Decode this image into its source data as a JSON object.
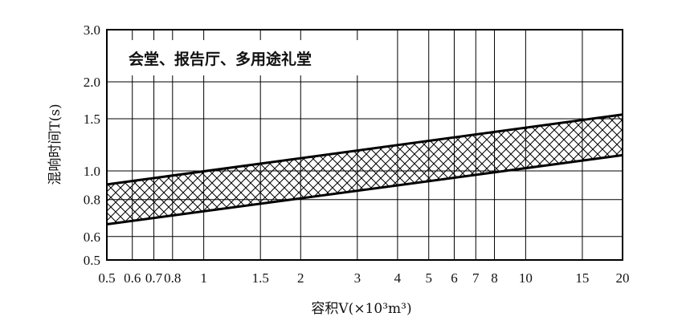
{
  "chart_data": {
    "type": "area",
    "title": "会堂、报告厅、多用途礼堂",
    "xlabel": "容积V(×10³m³)",
    "ylabel": "混响时间T(s)",
    "x_scale": "log",
    "y_scale": "log",
    "xlim": [
      0.5,
      20
    ],
    "ylim": [
      0.5,
      3.0
    ],
    "x_ticks": [
      {
        "value": 0.5,
        "label": "0.5"
      },
      {
        "value": 0.6,
        "label": "0.6"
      },
      {
        "value": 0.7,
        "label": "0.7"
      },
      {
        "value": 0.8,
        "label": "0.8"
      },
      {
        "value": 1,
        "label": "1"
      },
      {
        "value": 1.5,
        "label": "1.5"
      },
      {
        "value": 2,
        "label": "2"
      },
      {
        "value": 3,
        "label": "3"
      },
      {
        "value": 4,
        "label": "4"
      },
      {
        "value": 5,
        "label": "5"
      },
      {
        "value": 6,
        "label": "6"
      },
      {
        "value": 7,
        "label": "7"
      },
      {
        "value": 8,
        "label": "8"
      },
      {
        "value": 10,
        "label": "10"
      },
      {
        "value": 15,
        "label": "15"
      },
      {
        "value": 20,
        "label": "20"
      }
    ],
    "y_ticks": [
      {
        "value": 0.5,
        "label": "0.5"
      },
      {
        "value": 0.6,
        "label": "0.6"
      },
      {
        "value": 0.8,
        "label": "0.8"
      },
      {
        "value": 1.0,
        "label": "1.0"
      },
      {
        "value": 1.5,
        "label": "1.5"
      },
      {
        "value": 2.0,
        "label": "2.0"
      },
      {
        "value": 3.0,
        "label": "3.0"
      }
    ],
    "band": {
      "upper": [
        {
          "x": 0.5,
          "y": 0.9
        },
        {
          "x": 20,
          "y": 1.55
        }
      ],
      "lower": [
        {
          "x": 0.5,
          "y": 0.66
        },
        {
          "x": 20,
          "y": 1.13
        }
      ],
      "fill": "crosshatch"
    },
    "grid": true,
    "colors": {
      "line": "#000000",
      "grid": "#000000",
      "background": "#ffffff"
    }
  }
}
